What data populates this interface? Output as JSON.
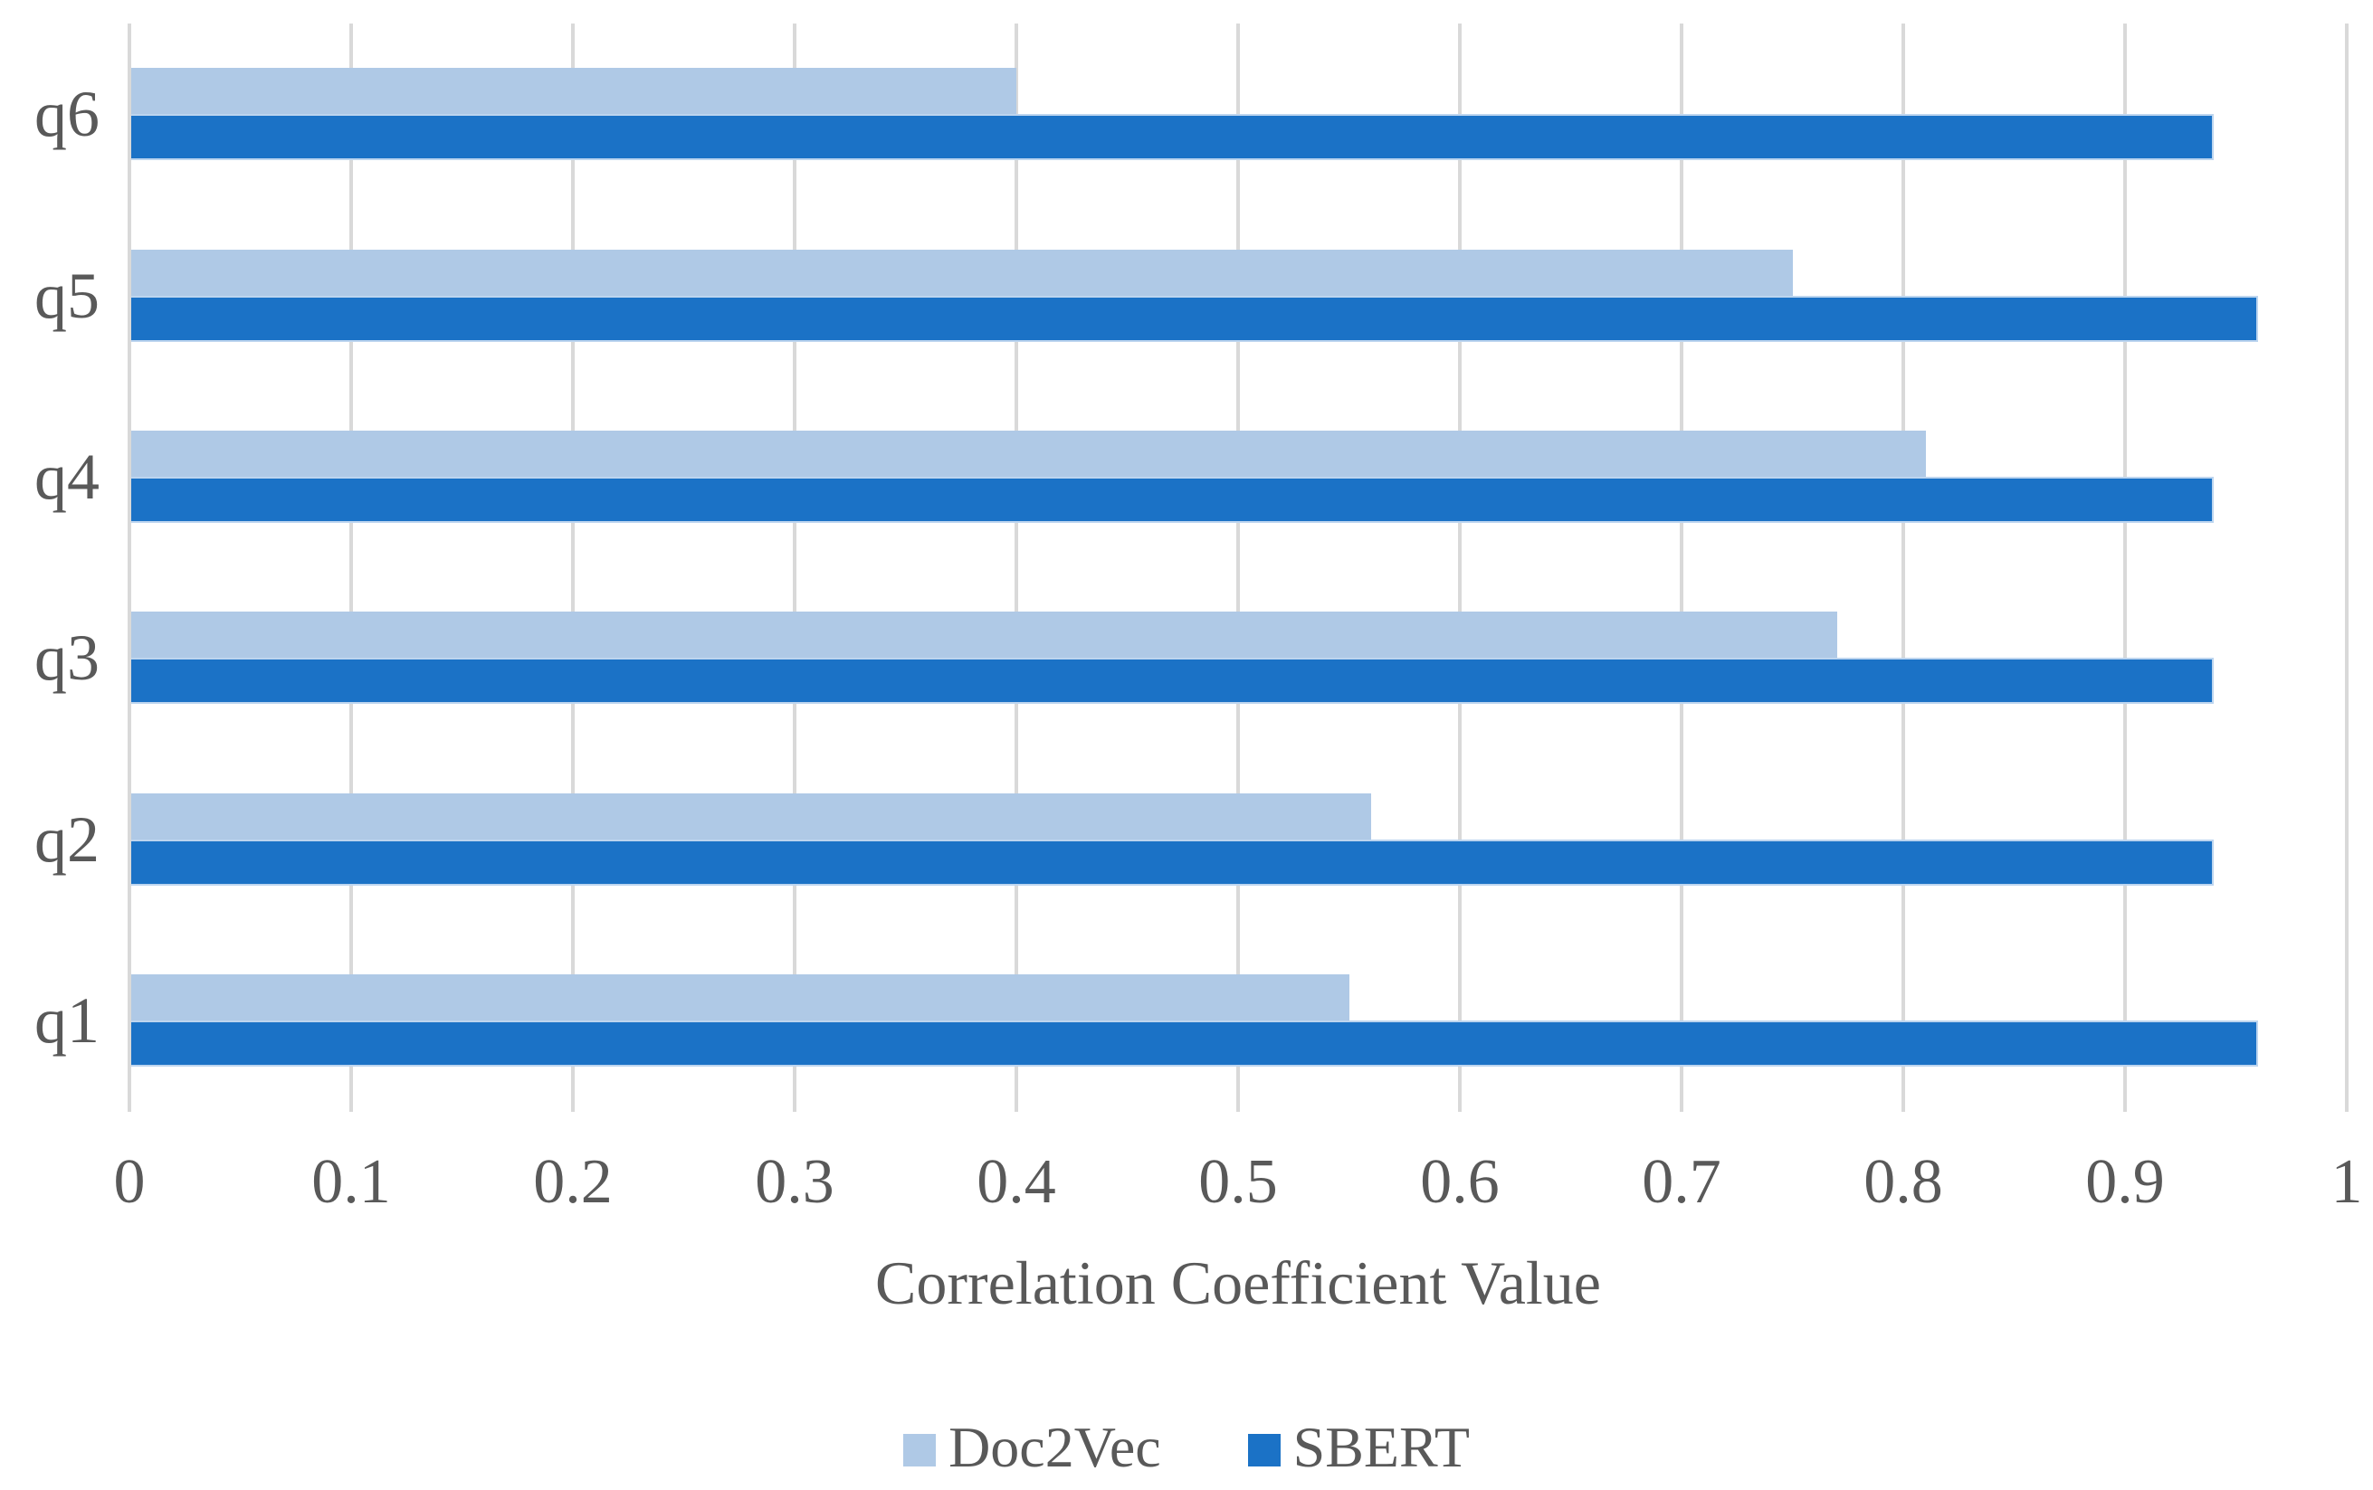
{
  "chart_data": {
    "type": "bar",
    "orientation": "horizontal",
    "title": "",
    "xlabel": "Correlation Coefficient Value",
    "ylabel": "",
    "xlim": [
      0,
      1
    ],
    "grid": true,
    "legend_position": "bottom",
    "category_display_order": "q6 at top, q1 at bottom",
    "categories": [
      "q1",
      "q2",
      "q3",
      "q4",
      "q5",
      "q6"
    ],
    "series": [
      {
        "name": "Doc2Vec",
        "color": "#afc9e6",
        "values": [
          0.55,
          0.56,
          0.77,
          0.81,
          0.75,
          0.4
        ]
      },
      {
        "name": "SBERT",
        "color": "#1b72c6",
        "values": [
          0.96,
          0.94,
          0.94,
          0.94,
          0.96,
          0.94
        ]
      }
    ],
    "xticks": [
      {
        "value": 0,
        "label": "0"
      },
      {
        "value": 0.1,
        "label": "0.1"
      },
      {
        "value": 0.2,
        "label": "0.2"
      },
      {
        "value": 0.3,
        "label": "0.3"
      },
      {
        "value": 0.4,
        "label": "0.4"
      },
      {
        "value": 0.5,
        "label": "0.5"
      },
      {
        "value": 0.6,
        "label": "0.6"
      },
      {
        "value": 0.7,
        "label": "0.7"
      },
      {
        "value": 0.8,
        "label": "0.8"
      },
      {
        "value": 0.9,
        "label": "0.9"
      },
      {
        "value": 1,
        "label": "1"
      }
    ]
  },
  "colors": {
    "text": "#595959",
    "gridline": "#d9d9d9",
    "background": "#ffffff"
  },
  "legend": {
    "item0_label": "Doc2Vec",
    "item1_label": "SBERT"
  }
}
